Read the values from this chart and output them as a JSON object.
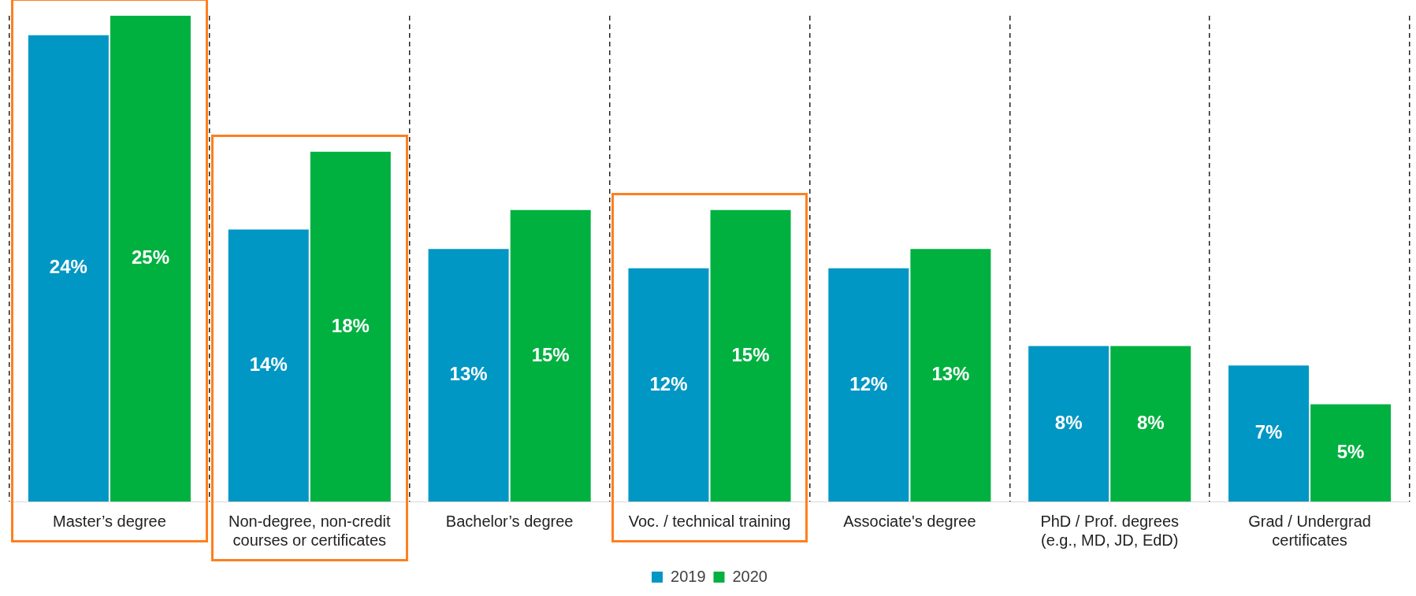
{
  "chart_data": {
    "type": "bar",
    "categories": [
      "Master’s degree",
      "Non-degree, non-credit courses or certificates",
      "Bachelor’s degree",
      "Voc. / technical training",
      "Associate's degree",
      "PhD / Prof. degrees (e.g., MD, JD, EdD)",
      "Grad / Undergrad certificates"
    ],
    "series": [
      {
        "name": "2019",
        "color": "#0097c4",
        "values": [
          24,
          14,
          13,
          12,
          12,
          8,
          7
        ],
        "value_labels": [
          "24%",
          "14%",
          "13%",
          "12%",
          "12%",
          "8%",
          "7%"
        ]
      },
      {
        "name": "2020",
        "color": "#00b140",
        "values": [
          25,
          18,
          15,
          15,
          13,
          8,
          5
        ],
        "value_labels": [
          "25%",
          "18%",
          "15%",
          "15%",
          "13%",
          "8%",
          "5%"
        ]
      }
    ],
    "grid": "x",
    "legend": "bottom"
  }
}
